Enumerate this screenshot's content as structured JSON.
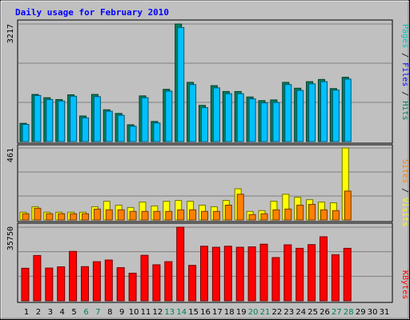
{
  "chart_data": [
    {
      "type": "bar",
      "title": "Daily usage for February 2010",
      "ymax_label": "3217",
      "ylim": [
        0,
        3217
      ],
      "legend": {
        "parts": [
          "Pages",
          "Files",
          "Hits"
        ],
        "separator": " / "
      },
      "categories": [
        "1",
        "2",
        "3",
        "4",
        "5",
        "6",
        "7",
        "8",
        "9",
        "10",
        "11",
        "12",
        "13",
        "14",
        "15",
        "16",
        "17",
        "18",
        "19",
        "20",
        "21",
        "22",
        "23",
        "24",
        "25",
        "26",
        "27",
        "28",
        "29",
        "30",
        "31"
      ],
      "series": [
        {
          "name": "Hits",
          "color": "#00805c",
          "values": [
            500,
            1290,
            1200,
            1150,
            1280,
            700,
            1290,
            870,
            770,
            460,
            1250,
            550,
            1430,
            3217,
            1620,
            990,
            1530,
            1370,
            1370,
            1220,
            1120,
            1140,
            1620,
            1460,
            1640,
            1700,
            1450,
            1760,
            null,
            null,
            null
          ]
        },
        {
          "name": "Files",
          "color": "#00c0ff",
          "values": [
            470,
            1260,
            1150,
            1110,
            1240,
            650,
            1230,
            830,
            720,
            420,
            1200,
            510,
            1380,
            3120,
            1560,
            930,
            1470,
            1310,
            1310,
            1170,
            1060,
            1070,
            1560,
            1400,
            1580,
            1640,
            1410,
            1710,
            null,
            null,
            null
          ]
        }
      ]
    },
    {
      "type": "bar",
      "ymax_label": "461",
      "ylim": [
        0,
        461
      ],
      "legend": {
        "parts": [
          "Sites",
          "Visits"
        ],
        "separator": " / "
      },
      "categories": [
        "1",
        "2",
        "3",
        "4",
        "5",
        "6",
        "7",
        "8",
        "9",
        "10",
        "11",
        "12",
        "13",
        "14",
        "15",
        "16",
        "17",
        "18",
        "19",
        "20",
        "21",
        "22",
        "23",
        "24",
        "25",
        "26",
        "27",
        "28",
        "29",
        "30",
        "31"
      ],
      "series": [
        {
          "name": "Visits",
          "color": "#ffff00",
          "values": [
            50,
            85,
            50,
            50,
            50,
            50,
            85,
            120,
            95,
            80,
            115,
            90,
            120,
            125,
            120,
            95,
            85,
            125,
            200,
            55,
            60,
            120,
            165,
            145,
            130,
            115,
            110,
            461,
            null,
            null,
            null
          ]
        },
        {
          "name": "Sites",
          "color": "#ff8000",
          "values": [
            40,
            75,
            40,
            40,
            40,
            40,
            70,
            65,
            65,
            55,
            55,
            55,
            55,
            65,
            65,
            55,
            55,
            95,
            165,
            35,
            40,
            65,
            70,
            95,
            100,
            65,
            60,
            185,
            null,
            null,
            null
          ]
        }
      ]
    },
    {
      "type": "bar",
      "ymax_label": "35750",
      "ylim": [
        0,
        35750
      ],
      "legend": {
        "parts": [
          "KBytes"
        ],
        "separator": ""
      },
      "categories": [
        "1",
        "2",
        "3",
        "4",
        "5",
        "6",
        "7",
        "8",
        "9",
        "10",
        "11",
        "12",
        "13",
        "14",
        "15",
        "16",
        "17",
        "18",
        "19",
        "20",
        "21",
        "22",
        "23",
        "24",
        "25",
        "26",
        "27",
        "28",
        "29",
        "30",
        "31"
      ],
      "series": [
        {
          "name": "KBytes",
          "color": "#ff0000",
          "values": [
            15800,
            22000,
            15900,
            16500,
            24000,
            16600,
            19000,
            19800,
            16100,
            13400,
            22100,
            17500,
            19000,
            35750,
            17200,
            26500,
            26000,
            26500,
            26000,
            26200,
            27500,
            21000,
            27200,
            25500,
            27300,
            31100,
            22400,
            25500,
            null,
            null,
            null
          ]
        }
      ]
    }
  ],
  "day_labels": [
    "1",
    "2",
    "3",
    "4",
    "5",
    "6",
    "7",
    "8",
    "9",
    "10",
    "11",
    "12",
    "13",
    "14",
    "15",
    "16",
    "17",
    "18",
    "19",
    "20",
    "21",
    "22",
    "23",
    "24",
    "25",
    "26",
    "27",
    "28",
    "29",
    "30",
    "31"
  ],
  "weekend_days": [
    6,
    7,
    13,
    14,
    20,
    21,
    27,
    28
  ],
  "colors": {
    "background": "#c0c0c0",
    "panel": "#c0c0c0",
    "title": "#0000ff",
    "weekend": "#00805c",
    "weekday": "#000000",
    "grid": "#808080",
    "hits": "#00805c",
    "files": "#00c0ff",
    "pages": "#00c0c0",
    "visits": "#ffff00",
    "sites": "#ff8000",
    "kbytes": "#ff0000"
  }
}
